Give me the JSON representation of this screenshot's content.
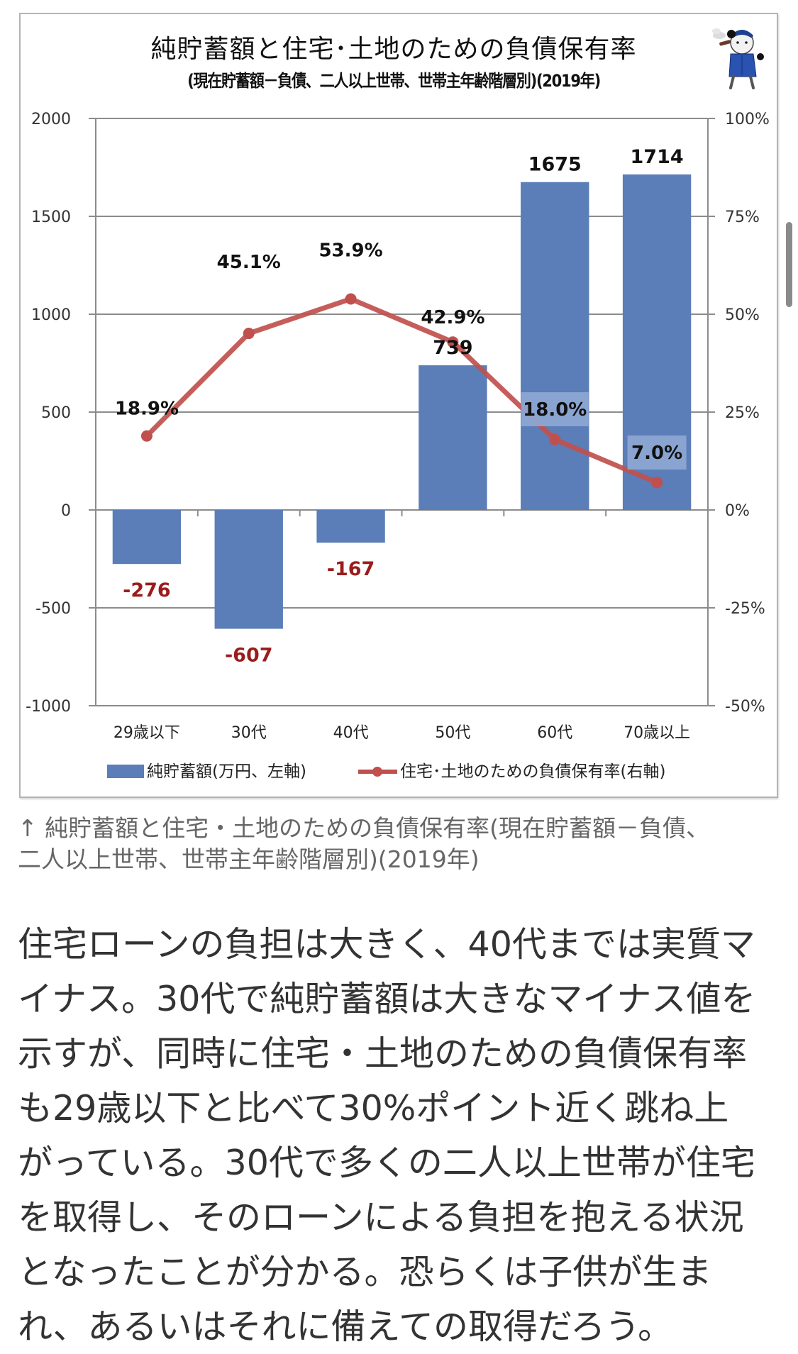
{
  "chart_data": {
    "type": "bar+line",
    "title": "純貯蓄額と住宅･土地のための負債保有率",
    "subtitle": "(現在貯蓄額－負債、二人以上世帯、世帯主年齢階層別)(2019年)",
    "categories": [
      "29歳以下",
      "30代",
      "40代",
      "50代",
      "60代",
      "70歳以上"
    ],
    "series": [
      {
        "name": "純貯蓄額(万円、左軸)",
        "type": "bar",
        "axis": "left",
        "color": "#5b7db8",
        "values": [
          -276,
          -607,
          -167,
          739,
          1675,
          1714
        ],
        "labels": [
          "-276",
          "-607",
          "-167",
          "739",
          "1675",
          "1714"
        ]
      },
      {
        "name": "住宅･土地のための負債保有率(右軸)",
        "type": "line",
        "axis": "right",
        "color": "#c0504d",
        "values": [
          18.9,
          45.1,
          53.9,
          42.9,
          18.0,
          7.0
        ],
        "labels": [
          "18.9%",
          "45.1%",
          "53.9%",
          "42.9%",
          "18.0%",
          "7.0%"
        ]
      }
    ],
    "left_axis": {
      "range": [
        -1000,
        2000
      ],
      "ticks": [
        "2000",
        "1500",
        "1000",
        "500",
        "0",
        "-500",
        "-1000"
      ]
    },
    "right_axis": {
      "range": [
        -50,
        100
      ],
      "unit": "%",
      "ticks": [
        "100%",
        "75%",
        "50%",
        "25%",
        "0%",
        "-25%",
        "-50%"
      ]
    },
    "grid": true,
    "legend_position": "bottom",
    "negative_label_color": "#9b1c1c"
  },
  "mascot": {
    "icon": "detective-cat-mascot"
  },
  "caption": {
    "lines": [
      "↑ 純貯蓄額と住宅・土地のための負債保有率(現在貯蓄額－負債、",
      "二人以上世帯、世帯主年齢階層別)(2019年)"
    ]
  },
  "article": {
    "lines": [
      "住宅ローンの負担は大きく、40代までは実質マ",
      "イナス。30代で純貯蓄額は大きなマイナス値を",
      "示すが、同時に住宅・土地のための負債保有率",
      "も29歳以下と比べて30%ポイント近く跳ね上",
      "がっている。30代で多くの二人以上世帯が住宅",
      "を取得し、そのローンによる負担を抱える状況",
      "となったことが分かる。恐らくは子供が生ま",
      "れ、あるいはそれに備えての取得だろう。"
    ]
  }
}
